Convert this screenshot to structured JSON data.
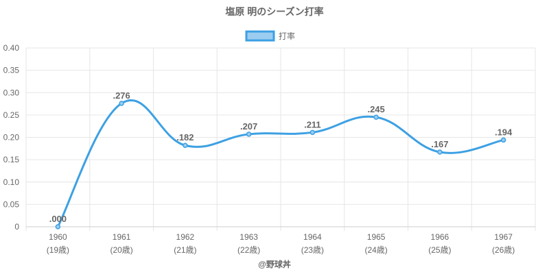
{
  "chart_data": {
    "type": "line",
    "title": "塩原 明のシーズン打率",
    "categories": [
      "1960",
      "1961",
      "1962",
      "1963",
      "1964",
      "1965",
      "1966",
      "1967"
    ],
    "category_sublabels": [
      "(19歳)",
      "(20歳)",
      "(21歳)",
      "(22歳)",
      "(23歳)",
      "(24歳)",
      "(25歳)",
      "(26歳)"
    ],
    "series": [
      {
        "name": "打率",
        "values": [
          0.0,
          0.276,
          0.182,
          0.207,
          0.211,
          0.245,
          0.167,
          0.194
        ],
        "labels": [
          ".000",
          ".276",
          ".182",
          ".207",
          ".211",
          ".245",
          ".167",
          ".194"
        ]
      }
    ],
    "ylim": [
      0,
      0.4
    ],
    "yticks": [
      0,
      0.05,
      0.1,
      0.15,
      0.2,
      0.25,
      0.3,
      0.35,
      0.4
    ],
    "ytick_labels": [
      "0",
      "0.05",
      "0.10",
      "0.15",
      "0.20",
      "0.25",
      "0.30",
      "0.35",
      "0.40"
    ],
    "grid": true,
    "legend_position": "top",
    "colors": {
      "line": "#3da0e3",
      "fill": "#9ccdf0",
      "grid": "#e6e6e6",
      "text": "#666666"
    }
  },
  "credit": "@野球丼"
}
